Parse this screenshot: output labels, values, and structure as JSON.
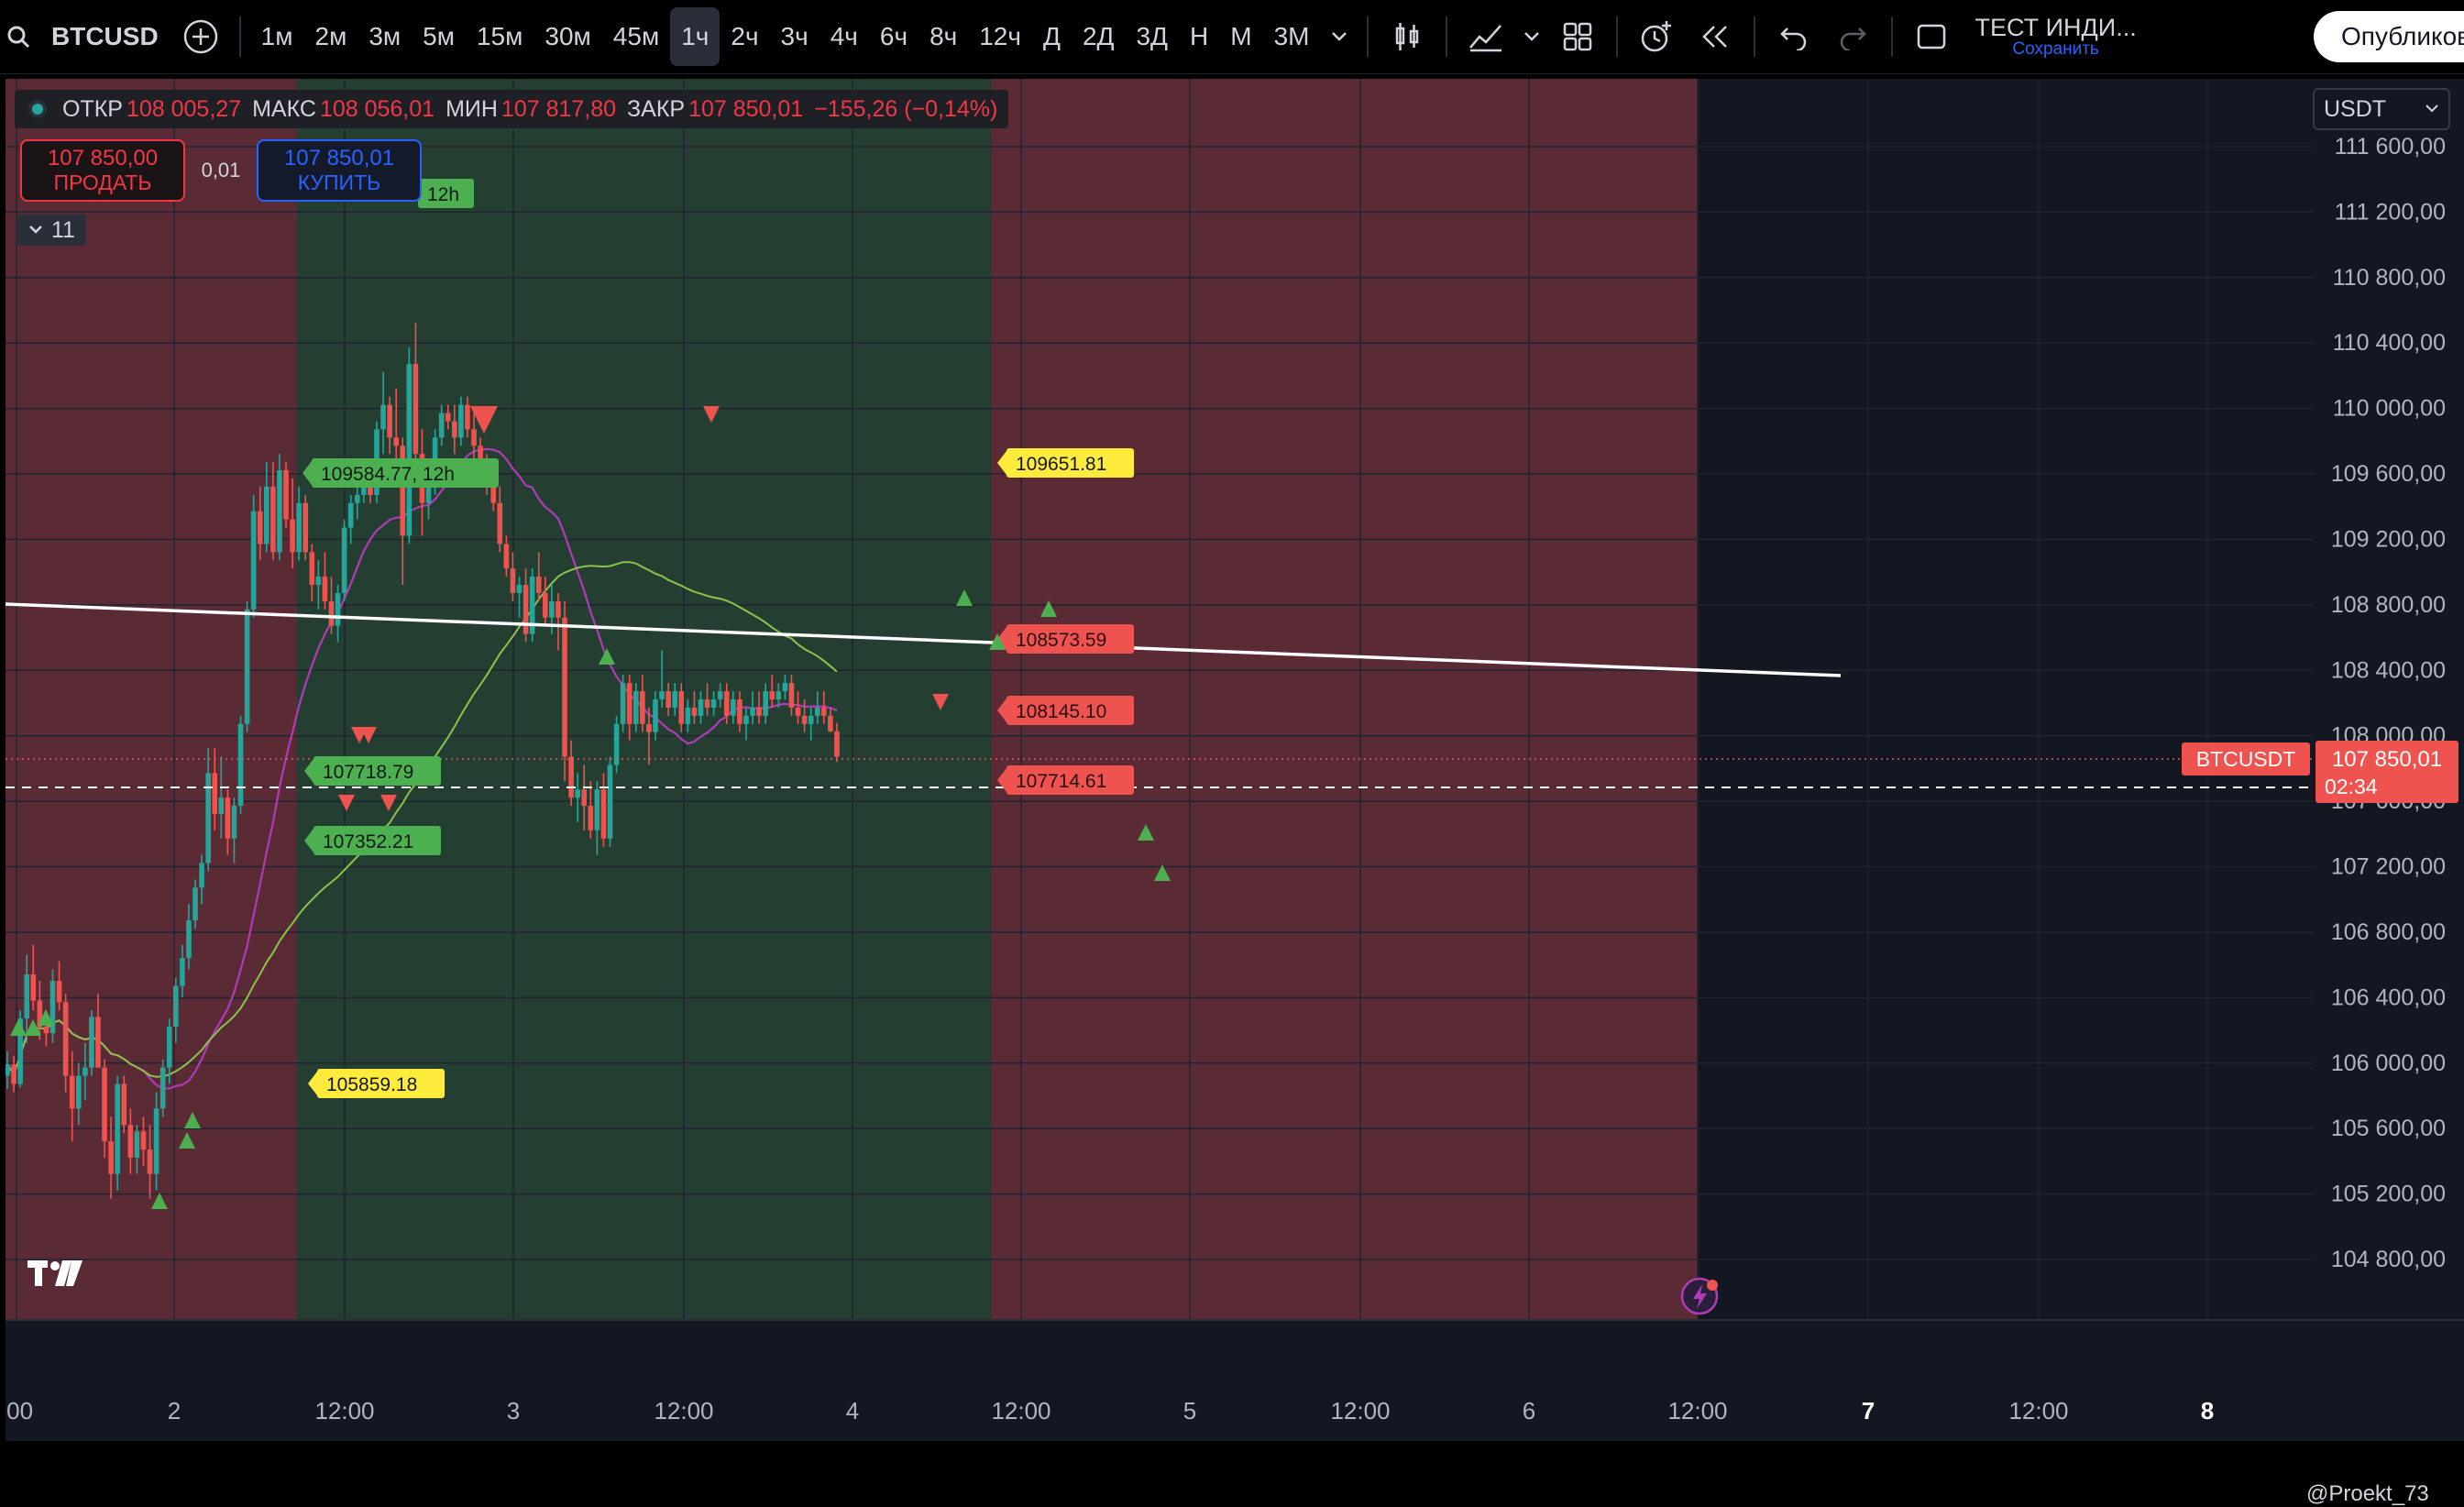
{
  "toolbar": {
    "symbol": "BTCUSD",
    "intervals": [
      "1м",
      "2м",
      "3м",
      "5м",
      "15м",
      "30м",
      "45м",
      "1ч",
      "2ч",
      "3ч",
      "4ч",
      "6ч",
      "8ч",
      "12ч",
      "Д",
      "2Д",
      "3Д",
      "Н",
      "М",
      "3М"
    ],
    "active_interval": "1ч",
    "template_title": "ТЕСТ ИНДИ...",
    "template_save": "Сохранить",
    "publish_label": "Опубликов"
  },
  "legend": {
    "open_label": "ОТКР",
    "open": "108 005,27",
    "high_label": "МАКС",
    "high": "108 056,01",
    "low_label": "МИН",
    "low": "107 817,80",
    "close_label": "ЗАКР",
    "close": "107 850,01",
    "change": "−155,26 (−0,14%)"
  },
  "trade": {
    "sell_price": "107 850,00",
    "sell_label": "ПРОДАТЬ",
    "spread": "0,01",
    "buy_price": "107 850,01",
    "buy_label": "КУПИТЬ"
  },
  "indicators_collapsed_count": "11",
  "currency": "USDT",
  "price_axis": [
    "111 600,00",
    "111 200,00",
    "110 800,00",
    "110 400,00",
    "110 000,00",
    "109 600,00",
    "109 200,00",
    "108 800,00",
    "108 400,00",
    "108 000,00",
    "107 600,00",
    "107 200,00",
    "106 800,00",
    "106 400,00",
    "106 000,00",
    "105 600,00",
    "105 200,00",
    "104 800,00"
  ],
  "time_axis": [
    ":00",
    "2",
    "12:00",
    "3",
    "12:00",
    "4",
    "12:00",
    "5",
    "12:00",
    "6",
    "12:00",
    "7",
    "12:00",
    "8"
  ],
  "last_price": {
    "symbol": "BTCUSDT",
    "price": "107 850,01",
    "countdown": "02:34"
  },
  "annotations": {
    "high_label_1": "109584.77, 12h",
    "label_109651": "109651.81",
    "label_105859": "105859.18",
    "label_107718": "107718.79",
    "label_107352": "107352.21",
    "label_108573": "108573.59",
    "label_108145": "108145.10",
    "label_107714": "107714.61",
    "label_12h": "12h"
  },
  "credit": "@Proekt_73",
  "colors": {
    "up": "#26a69a",
    "down": "#ef5350",
    "bg": "#131722",
    "red_zone": "#5a2b34",
    "green_zone": "#243f31"
  },
  "chart_data": {
    "type": "candlestick",
    "interval": "1ч",
    "ohlc": [
      [
        105900,
        106050,
        105820,
        105970
      ],
      [
        105970,
        106020,
        105800,
        105850
      ],
      [
        105850,
        106300,
        105830,
        106250
      ],
      [
        106250,
        106640,
        106100,
        106520
      ],
      [
        106520,
        106700,
        106300,
        106360
      ],
      [
        106360,
        106480,
        106120,
        106200
      ],
      [
        106200,
        106300,
        106080,
        106160
      ],
      [
        106160,
        106550,
        106100,
        106480
      ],
      [
        106480,
        106600,
        106300,
        106350
      ],
      [
        106350,
        106400,
        105800,
        105900
      ],
      [
        105900,
        106050,
        105500,
        105700
      ],
      [
        105700,
        105980,
        105600,
        105900
      ],
      [
        105900,
        106100,
        105750,
        105950
      ],
      [
        105950,
        106300,
        105900,
        106260
      ],
      [
        106260,
        106400,
        105950,
        105950
      ],
      [
        105950,
        106000,
        105400,
        105500
      ],
      [
        105500,
        105650,
        105150,
        105300
      ],
      [
        105300,
        105900,
        105200,
        105850
      ],
      [
        105850,
        105900,
        105550,
        105600
      ],
      [
        105600,
        105700,
        105300,
        105400
      ],
      [
        105400,
        105600,
        105300,
        105560
      ],
      [
        105560,
        105650,
        105350,
        105450
      ],
      [
        105450,
        105600,
        105150,
        105300
      ],
      [
        105300,
        105800,
        105200,
        105700
      ],
      [
        105700,
        106000,
        105650,
        105950
      ],
      [
        105950,
        106250,
        105850,
        106200
      ],
      [
        106200,
        106500,
        106100,
        106450
      ],
      [
        106450,
        106700,
        106380,
        106620
      ],
      [
        106620,
        106950,
        106550,
        106850
      ],
      [
        106850,
        107100,
        106800,
        107050
      ],
      [
        107050,
        107250,
        106950,
        107200
      ],
      [
        107200,
        107900,
        107150,
        107750
      ],
      [
        107750,
        107900,
        107400,
        107500
      ],
      [
        107500,
        107850,
        107350,
        107600
      ],
      [
        107600,
        107650,
        107250,
        107350
      ],
      [
        107350,
        107600,
        107200,
        107550
      ],
      [
        107550,
        108100,
        107500,
        108050
      ],
      [
        108050,
        108800,
        108000,
        108750
      ],
      [
        108750,
        109450,
        108700,
        109350
      ],
      [
        109350,
        109500,
        109050,
        109150
      ],
      [
        109150,
        109650,
        109100,
        109500
      ],
      [
        109500,
        109650,
        109050,
        109100
      ],
      [
        109100,
        109700,
        109050,
        109600
      ],
      [
        109600,
        109650,
        109250,
        109300
      ],
      [
        109300,
        109550,
        109000,
        109100
      ],
      [
        109100,
        109500,
        109050,
        109400
      ],
      [
        109400,
        109450,
        109050,
        109100
      ],
      [
        109100,
        109150,
        108800,
        108900
      ],
      [
        108900,
        109050,
        108750,
        108950
      ],
      [
        108950,
        109100,
        108750,
        108800
      ],
      [
        108800,
        108950,
        108600,
        108650
      ],
      [
        108650,
        108900,
        108550,
        108850
      ],
      [
        108850,
        109300,
        108800,
        109250
      ],
      [
        109250,
        109450,
        109150,
        109400
      ],
      [
        109400,
        109500,
        109300,
        109450
      ],
      [
        109450,
        109600,
        109400,
        109500
      ],
      [
        109500,
        109650,
        109400,
        109450
      ],
      [
        109450,
        109900,
        109400,
        109850
      ],
      [
        109850,
        110200,
        109700,
        110000
      ],
      [
        110000,
        110050,
        109700,
        109800
      ],
      [
        109800,
        110100,
        109650,
        109750
      ],
      [
        109750,
        109800,
        108900,
        109200
      ],
      [
        109200,
        110350,
        109150,
        110250
      ],
      [
        110250,
        110500,
        109600,
        109700
      ],
      [
        109700,
        109850,
        109200,
        109400
      ],
      [
        109400,
        109600,
        109300,
        109500
      ],
      [
        109500,
        109850,
        109450,
        109800
      ],
      [
        109800,
        110000,
        109750,
        109950
      ],
      [
        109950,
        110000,
        109850,
        109900
      ],
      [
        109900,
        110000,
        109700,
        109800
      ],
      [
        109800,
        110050,
        109750,
        110000
      ],
      [
        110000,
        110050,
        109800,
        109850
      ],
      [
        109850,
        109950,
        109650,
        109750
      ],
      [
        109750,
        109800,
        109600,
        109650
      ],
      [
        109650,
        109700,
        109450,
        109500
      ],
      [
        109500,
        109550,
        109350,
        109400
      ],
      [
        109400,
        109500,
        109100,
        109150
      ],
      [
        109150,
        109200,
        108950,
        109000
      ],
      [
        109000,
        109100,
        108800,
        108850
      ],
      [
        108850,
        108950,
        108700,
        108900
      ],
      [
        108900,
        109000,
        108550,
        108600
      ],
      [
        108600,
        109000,
        108550,
        108950
      ],
      [
        108950,
        109100,
        108800,
        108850
      ],
      [
        108850,
        108950,
        108650,
        108700
      ],
      [
        108700,
        108900,
        108600,
        108800
      ],
      [
        108800,
        108850,
        108500,
        108700
      ],
      [
        108700,
        108800,
        107700,
        107850
      ],
      [
        107850,
        107950,
        107550,
        107600
      ],
      [
        107600,
        107750,
        107450,
        107650
      ],
      [
        107650,
        107800,
        107400,
        107550
      ],
      [
        107550,
        107700,
        107350,
        107400
      ],
      [
        107400,
        107700,
        107250,
        107650
      ],
      [
        107650,
        107750,
        107300,
        107350
      ],
      [
        107350,
        107850,
        107300,
        107800
      ],
      [
        107800,
        108100,
        107750,
        108050
      ],
      [
        108050,
        108350,
        108000,
        108300
      ],
      [
        108300,
        108350,
        107950,
        108050
      ],
      [
        108050,
        108300,
        108000,
        108250
      ],
      [
        108250,
        108350,
        108000,
        108050
      ],
      [
        108050,
        108150,
        107800,
        108000
      ],
      [
        108000,
        108250,
        107950,
        108200
      ],
      [
        108200,
        108500,
        108150,
        108250
      ],
      [
        108250,
        108300,
        108100,
        108150
      ],
      [
        108150,
        108300,
        108100,
        108250
      ],
      [
        108250,
        108300,
        108000,
        108050
      ],
      [
        108050,
        108200,
        108000,
        108150
      ],
      [
        108150,
        108250,
        108050,
        108100
      ],
      [
        108100,
        108250,
        108050,
        108200
      ],
      [
        108200,
        108300,
        108100,
        108150
      ],
      [
        108150,
        108250,
        108100,
        108200
      ],
      [
        108200,
        108300,
        108150,
        108250
      ],
      [
        108250,
        108300,
        108050,
        108100
      ],
      [
        108100,
        108250,
        108050,
        108200
      ],
      [
        108200,
        108250,
        108000,
        108050
      ],
      [
        108050,
        108150,
        107950,
        108100
      ],
      [
        108100,
        108250,
        108050,
        108150
      ],
      [
        108150,
        108250,
        108050,
        108100
      ],
      [
        108100,
        108300,
        108050,
        108250
      ],
      [
        108250,
        108350,
        108150,
        108200
      ],
      [
        108200,
        108300,
        108150,
        108250
      ],
      [
        108250,
        108350,
        108200,
        108300
      ],
      [
        108300,
        108350,
        108100,
        108150
      ],
      [
        108150,
        108250,
        108050,
        108100
      ],
      [
        108100,
        108200,
        108000,
        108050
      ],
      [
        108050,
        108150,
        107950,
        108100
      ],
      [
        108100,
        108250,
        108050,
        108150
      ],
      [
        108150,
        108250,
        108050,
        108100
      ],
      [
        108100,
        108150,
        108000,
        108005
      ],
      [
        108005,
        108056,
        107818,
        107850
      ]
    ]
  }
}
